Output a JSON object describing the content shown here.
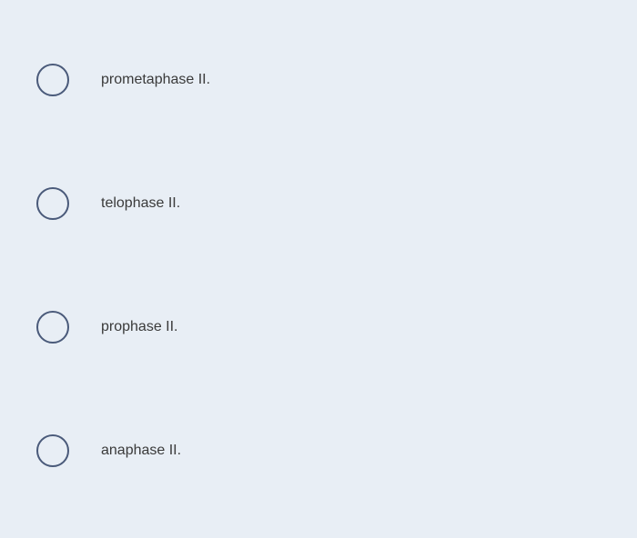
{
  "options": [
    {
      "label": "prometaphase II."
    },
    {
      "label": "telophase II."
    },
    {
      "label": "prophase II."
    },
    {
      "label": "anaphase II."
    }
  ],
  "colors": {
    "background": "#e8eef5",
    "radio_border": "#4a5a7a",
    "text": "#3a3a3a"
  }
}
